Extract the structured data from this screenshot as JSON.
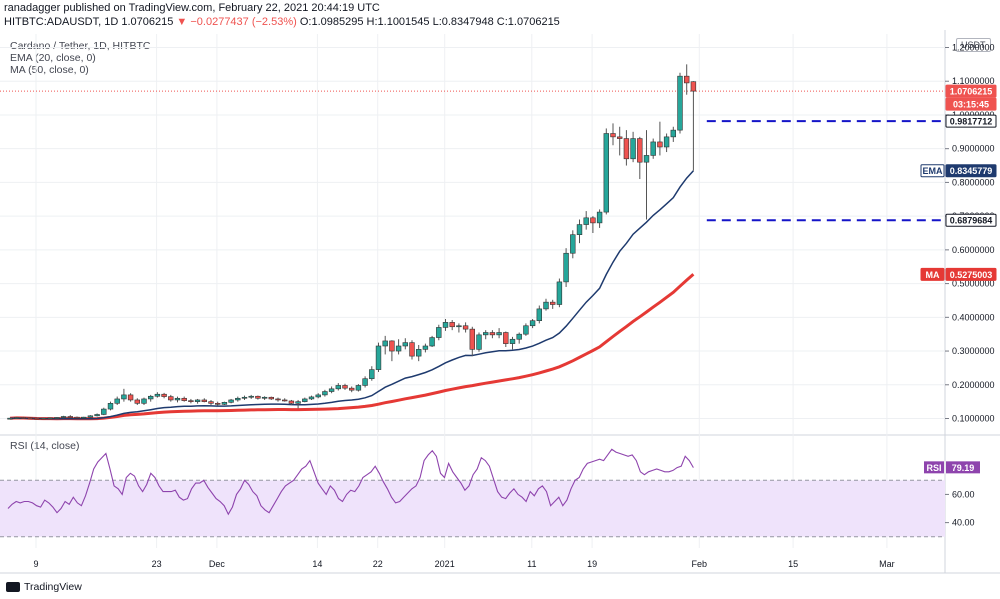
{
  "header": {
    "line1": "ranadagger published on TradingView.com, February 22, 2021 20:44:19 UTC",
    "symbol": "HITBTC:ADAUSDT, 1D",
    "price": "1.0706215",
    "change": "▼ −0.0277437 (−2.53%)",
    "ohlc": "O:1.0985295 H:1.1001545 L:0.8347948 C:1.0706215"
  },
  "legend": {
    "title": "Cardano / Tether, 1D, HITBTC",
    "ema": "EMA (20, close, 0)",
    "ma": "MA (50, close, 0)",
    "rsi": "RSI (14, close)"
  },
  "currency": "USDT",
  "branding": "TradingView",
  "colors": {
    "up": "#26a69a",
    "down": "#ef5350",
    "ema": "#1e3a6e",
    "ma": "#e53935",
    "level": "#1414c8",
    "rsi_line": "#8e44ad",
    "rsi_band": "#efe3fb",
    "grid": "#eef0f3"
  },
  "chart_data": {
    "type": "candlestick",
    "y_range": [
      0.06,
      1.24
    ],
    "y_ticks": [
      "1.2000000",
      "1.1000000",
      "1.0000000",
      "0.9000000",
      "0.8000000",
      "0.7000000",
      "0.6000000",
      "0.5000000",
      "0.4000000",
      "0.3000000",
      "0.2000000",
      "0.1000000"
    ],
    "x_ticks": [
      "9",
      "23",
      "Dec",
      "14",
      "22",
      "2021",
      "11",
      "19",
      "Feb",
      "15",
      "Mar"
    ],
    "price_labels": [
      {
        "text": "1.0706215",
        "value": 1.0706215,
        "kind": "last"
      },
      {
        "text": "03:15:45",
        "value": 1.0706215,
        "kind": "timer"
      },
      {
        "text": "0.9817712",
        "value": 0.9817712,
        "kind": "level"
      },
      {
        "text": "EMA",
        "value": 0.8345779,
        "kind": "tag-ema"
      },
      {
        "text": "0.8345779",
        "value": 0.8345779,
        "kind": "ema"
      },
      {
        "text": "0.6879684",
        "value": 0.6879684,
        "kind": "level"
      },
      {
        "text": "MA",
        "value": 0.5275003,
        "kind": "tag-ma"
      },
      {
        "text": "0.5275003",
        "value": 0.5275003,
        "kind": "ma"
      }
    ],
    "horizontal_levels": [
      0.9817712,
      0.6879684
    ],
    "candles": [
      [
        0.1,
        0.102,
        0.098,
        0.101
      ],
      [
        0.101,
        0.104,
        0.099,
        0.103
      ],
      [
        0.103,
        0.105,
        0.1,
        0.102
      ],
      [
        0.102,
        0.104,
        0.1,
        0.101
      ],
      [
        0.101,
        0.103,
        0.098,
        0.099
      ],
      [
        0.099,
        0.102,
        0.097,
        0.101
      ],
      [
        0.101,
        0.103,
        0.099,
        0.102
      ],
      [
        0.102,
        0.104,
        0.1,
        0.103
      ],
      [
        0.103,
        0.108,
        0.101,
        0.106
      ],
      [
        0.106,
        0.11,
        0.103,
        0.104
      ],
      [
        0.104,
        0.106,
        0.1,
        0.102
      ],
      [
        0.102,
        0.105,
        0.1,
        0.104
      ],
      [
        0.104,
        0.11,
        0.102,
        0.108
      ],
      [
        0.108,
        0.115,
        0.106,
        0.112
      ],
      [
        0.112,
        0.132,
        0.11,
        0.128
      ],
      [
        0.128,
        0.15,
        0.124,
        0.145
      ],
      [
        0.145,
        0.165,
        0.14,
        0.158
      ],
      [
        0.158,
        0.188,
        0.15,
        0.17
      ],
      [
        0.17,
        0.175,
        0.15,
        0.155
      ],
      [
        0.155,
        0.16,
        0.14,
        0.145
      ],
      [
        0.145,
        0.162,
        0.14,
        0.158
      ],
      [
        0.158,
        0.17,
        0.15,
        0.166
      ],
      [
        0.166,
        0.178,
        0.162,
        0.172
      ],
      [
        0.172,
        0.176,
        0.16,
        0.165
      ],
      [
        0.165,
        0.17,
        0.15,
        0.155
      ],
      [
        0.155,
        0.165,
        0.148,
        0.16
      ],
      [
        0.16,
        0.165,
        0.15,
        0.153
      ],
      [
        0.153,
        0.158,
        0.145,
        0.15
      ],
      [
        0.15,
        0.158,
        0.144,
        0.155
      ],
      [
        0.155,
        0.16,
        0.148,
        0.15
      ],
      [
        0.15,
        0.155,
        0.14,
        0.145
      ],
      [
        0.145,
        0.15,
        0.138,
        0.142
      ],
      [
        0.142,
        0.15,
        0.14,
        0.148
      ],
      [
        0.148,
        0.158,
        0.145,
        0.155
      ],
      [
        0.155,
        0.165,
        0.15,
        0.16
      ],
      [
        0.16,
        0.168,
        0.155,
        0.163
      ],
      [
        0.163,
        0.17,
        0.158,
        0.166
      ],
      [
        0.166,
        0.168,
        0.156,
        0.16
      ],
      [
        0.16,
        0.166,
        0.155,
        0.163
      ],
      [
        0.163,
        0.165,
        0.155,
        0.158
      ],
      [
        0.158,
        0.162,
        0.15,
        0.155
      ],
      [
        0.155,
        0.16,
        0.15,
        0.152
      ],
      [
        0.152,
        0.155,
        0.14,
        0.145
      ],
      [
        0.145,
        0.155,
        0.13,
        0.15
      ],
      [
        0.15,
        0.162,
        0.148,
        0.158
      ],
      [
        0.158,
        0.168,
        0.155,
        0.164
      ],
      [
        0.164,
        0.175,
        0.16,
        0.17
      ],
      [
        0.17,
        0.185,
        0.165,
        0.18
      ],
      [
        0.18,
        0.195,
        0.175,
        0.188
      ],
      [
        0.188,
        0.205,
        0.183,
        0.198
      ],
      [
        0.198,
        0.203,
        0.185,
        0.19
      ],
      [
        0.19,
        0.195,
        0.178,
        0.184
      ],
      [
        0.184,
        0.202,
        0.18,
        0.198
      ],
      [
        0.198,
        0.225,
        0.192,
        0.218
      ],
      [
        0.218,
        0.255,
        0.212,
        0.245
      ],
      [
        0.245,
        0.325,
        0.238,
        0.315
      ],
      [
        0.315,
        0.345,
        0.29,
        0.33
      ],
      [
        0.33,
        0.332,
        0.27,
        0.3
      ],
      [
        0.3,
        0.335,
        0.29,
        0.315
      ],
      [
        0.315,
        0.338,
        0.305,
        0.325
      ],
      [
        0.325,
        0.332,
        0.275,
        0.285
      ],
      [
        0.285,
        0.318,
        0.27,
        0.305
      ],
      [
        0.305,
        0.322,
        0.296,
        0.315
      ],
      [
        0.315,
        0.345,
        0.312,
        0.34
      ],
      [
        0.34,
        0.378,
        0.332,
        0.37
      ],
      [
        0.37,
        0.395,
        0.36,
        0.385
      ],
      [
        0.385,
        0.392,
        0.362,
        0.372
      ],
      [
        0.372,
        0.382,
        0.355,
        0.375
      ],
      [
        0.375,
        0.385,
        0.355,
        0.365
      ],
      [
        0.365,
        0.372,
        0.285,
        0.305
      ],
      [
        0.305,
        0.355,
        0.298,
        0.348
      ],
      [
        0.348,
        0.362,
        0.335,
        0.355
      ],
      [
        0.355,
        0.362,
        0.338,
        0.348
      ],
      [
        0.348,
        0.368,
        0.338,
        0.355
      ],
      [
        0.355,
        0.358,
        0.312,
        0.322
      ],
      [
        0.322,
        0.342,
        0.305,
        0.335
      ],
      [
        0.335,
        0.355,
        0.322,
        0.35
      ],
      [
        0.35,
        0.382,
        0.345,
        0.375
      ],
      [
        0.375,
        0.395,
        0.368,
        0.39
      ],
      [
        0.39,
        0.435,
        0.382,
        0.425
      ],
      [
        0.425,
        0.455,
        0.42,
        0.445
      ],
      [
        0.445,
        0.452,
        0.425,
        0.438
      ],
      [
        0.438,
        0.515,
        0.43,
        0.505
      ],
      [
        0.505,
        0.605,
        0.49,
        0.59
      ],
      [
        0.59,
        0.658,
        0.575,
        0.645
      ],
      [
        0.645,
        0.69,
        0.62,
        0.675
      ],
      [
        0.675,
        0.715,
        0.66,
        0.695
      ],
      [
        0.695,
        0.7,
        0.65,
        0.68
      ],
      [
        0.68,
        0.72,
        0.665,
        0.712
      ],
      [
        0.712,
        0.96,
        0.705,
        0.945
      ],
      [
        0.945,
        0.975,
        0.91,
        0.935
      ],
      [
        0.935,
        0.965,
        0.88,
        0.93
      ],
      [
        0.93,
        0.955,
        0.85,
        0.87
      ],
      [
        0.87,
        0.95,
        0.86,
        0.93
      ],
      [
        0.93,
        0.935,
        0.81,
        0.86
      ],
      [
        0.86,
        0.955,
        0.69,
        0.88
      ],
      [
        0.88,
        0.93,
        0.87,
        0.92
      ],
      [
        0.92,
        0.98,
        0.88,
        0.905
      ],
      [
        0.905,
        0.945,
        0.89,
        0.935
      ],
      [
        0.935,
        0.965,
        0.92,
        0.955
      ],
      [
        0.955,
        1.125,
        0.945,
        1.115
      ],
      [
        1.115,
        1.15,
        1.06,
        1.095
      ],
      [
        1.0985295,
        1.1001545,
        0.8347948,
        1.0706215
      ]
    ],
    "ema20_last": 0.8345779,
    "ma50_last": 0.5275003,
    "rsi": {
      "name": "RSI (14, close)",
      "y_range": [
        22,
        100
      ],
      "upper_band": 70,
      "lower_band": 30,
      "y_ticks": [
        "60.00",
        "40.00"
      ],
      "last_label": "RSI",
      "last_value": "79.19",
      "values": [
        50,
        53,
        55,
        54,
        55,
        55,
        54,
        52,
        51,
        56,
        54,
        51,
        47,
        50,
        55,
        53,
        58,
        54,
        52,
        59,
        68,
        78,
        83,
        86,
        89,
        78,
        66,
        64,
        60,
        72,
        75,
        73,
        66,
        62,
        67,
        75,
        72,
        66,
        62,
        62,
        62,
        63,
        58,
        56,
        57,
        64,
        68,
        68,
        70,
        65,
        61,
        57,
        55,
        52,
        46,
        51,
        60,
        64,
        70,
        67,
        62,
        59,
        52,
        49,
        47,
        52,
        57,
        62,
        66,
        68,
        70,
        74,
        78,
        80,
        84,
        76,
        68,
        64,
        60,
        66,
        63,
        57,
        55,
        60,
        63,
        62,
        66,
        72,
        74,
        76,
        80,
        75,
        69,
        64,
        58,
        54,
        55,
        58,
        61,
        64,
        66,
        72,
        84,
        88,
        91,
        87,
        75,
        72,
        82,
        76,
        72,
        68,
        63,
        66,
        74,
        78,
        86,
        84,
        80,
        71,
        62,
        58,
        57,
        61,
        64,
        60,
        58,
        55,
        62,
        59,
        64,
        66,
        62,
        52,
        55,
        58,
        52,
        56,
        64,
        70,
        72,
        78,
        82,
        83,
        84,
        85,
        84,
        88,
        92,
        90,
        89,
        88,
        87,
        88,
        84,
        76,
        74,
        76,
        77,
        78,
        77,
        76,
        76,
        77,
        79,
        80,
        87,
        84,
        79
      ]
    }
  }
}
